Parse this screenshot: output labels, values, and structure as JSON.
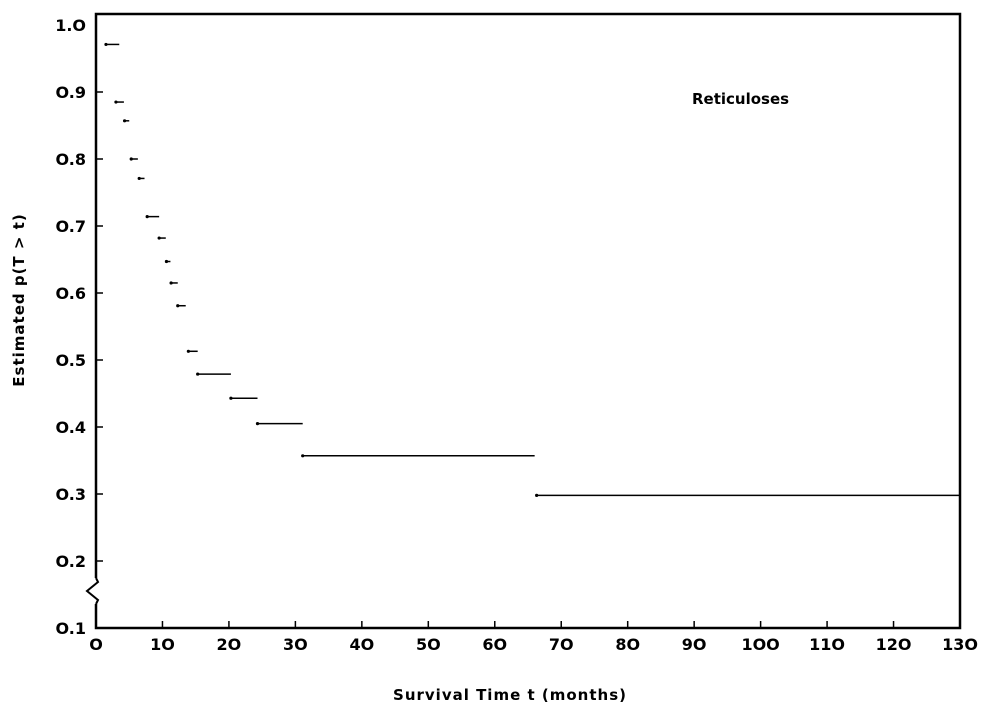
{
  "chart_data": {
    "type": "line",
    "title": "",
    "xlabel": "Survival Time t (months)",
    "ylabel": "Estimated p(T > t)",
    "annotation": "Reticuloses",
    "xlim": [
      0,
      130
    ],
    "ylim": [
      0.1,
      1.0
    ],
    "axis_break_on_y": true,
    "grid": false,
    "x_ticks": [
      0,
      10,
      20,
      30,
      40,
      50,
      60,
      70,
      80,
      90,
      100,
      110,
      120,
      130
    ],
    "x_tick_labels": [
      "O",
      "1O",
      "2O",
      "3O",
      "4O",
      "5O",
      "6O",
      "7O",
      "8O",
      "9O",
      "1OO",
      "11O",
      "12O",
      "13O"
    ],
    "y_ticks": [
      0.1,
      0.2,
      0.3,
      0.4,
      0.5,
      0.6,
      0.7,
      0.8,
      0.9,
      1.0
    ],
    "y_tick_labels": [
      "O.1",
      "O.2",
      "O.3",
      "O.4",
      "O.5",
      "O.6",
      "O.7",
      "O.8",
      "O.9",
      "1.O"
    ],
    "series": [
      {
        "steps": [
          {
            "x_start": 1.5,
            "x_end": 3.5,
            "y": 0.971
          },
          {
            "x_start": 3.0,
            "x_end": 4.2,
            "y": 0.885
          },
          {
            "x_start": 4.3,
            "x_end": 5.0,
            "y": 0.857
          },
          {
            "x_start": 5.3,
            "x_end": 6.3,
            "y": 0.8
          },
          {
            "x_start": 6.5,
            "x_end": 7.3,
            "y": 0.771
          },
          {
            "x_start": 7.7,
            "x_end": 9.5,
            "y": 0.714
          },
          {
            "x_start": 9.5,
            "x_end": 10.5,
            "y": 0.682
          },
          {
            "x_start": 10.6,
            "x_end": 11.2,
            "y": 0.647
          },
          {
            "x_start": 11.3,
            "x_end": 12.3,
            "y": 0.615
          },
          {
            "x_start": 12.3,
            "x_end": 13.5,
            "y": 0.581
          },
          {
            "x_start": 13.9,
            "x_end": 15.3,
            "y": 0.513
          },
          {
            "x_start": 15.3,
            "x_end": 20.3,
            "y": 0.479
          },
          {
            "x_start": 20.3,
            "x_end": 24.3,
            "y": 0.443
          },
          {
            "x_start": 24.3,
            "x_end": 31.1,
            "y": 0.405
          },
          {
            "x_start": 31.1,
            "x_end": 66.0,
            "y": 0.357
          },
          {
            "x_start": 66.3,
            "x_end": 130.0,
            "y": 0.298
          }
        ]
      }
    ]
  }
}
